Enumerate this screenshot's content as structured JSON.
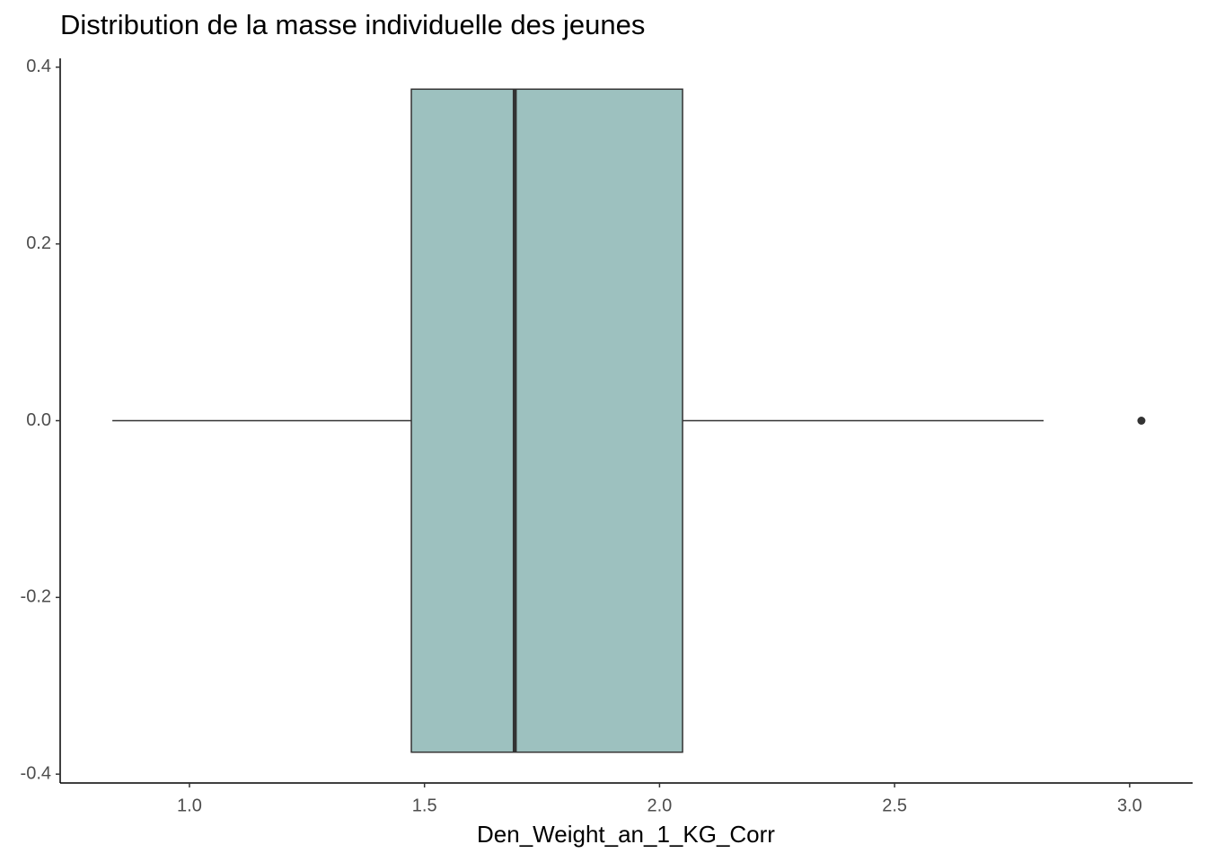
{
  "chart_data": {
    "type": "boxplot",
    "title": "Distribution de la masse individuelle des jeunes",
    "x_label": "Den_Weight_an_1_KG_Corr",
    "min": 0.836,
    "q1": 1.472,
    "median": 1.692,
    "q3": 2.049,
    "max": 2.817,
    "outliers": [
      3.025
    ],
    "color": "#9dc1bf",
    "xlim": [
      0.725,
      3.134
    ],
    "xticks": [
      {
        "value": 1,
        "label": "1.0"
      },
      1.5,
      {
        "value": 2,
        "label": "2.0"
      },
      2.5,
      {
        "value": 3,
        "label": "3.0"
      }
    ],
    "ylim": [
      -0.41,
      0.41
    ],
    "yticks": [
      0.4,
      0.2,
      {
        "value": 0,
        "label": "0.0"
      },
      -0.2,
      -0.4
    ],
    "grid": false
  }
}
